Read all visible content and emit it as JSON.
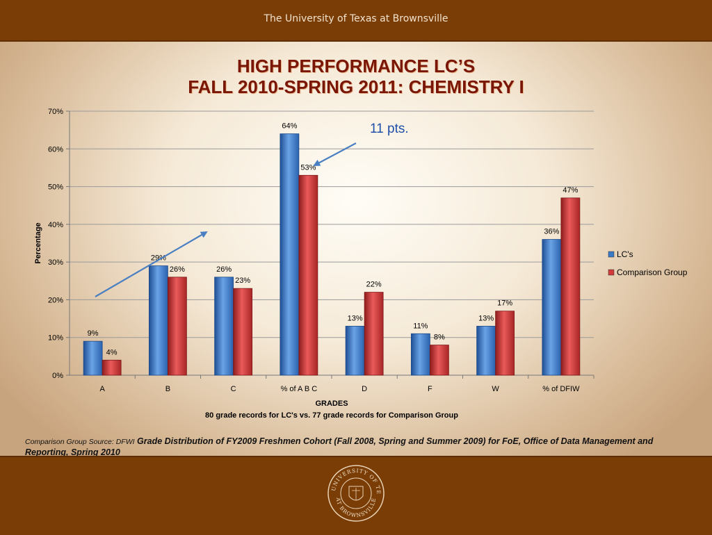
{
  "header": {
    "university": "The University of Texas at Brownsville"
  },
  "slide": {
    "title_line1": "HIGH PERFORMANCE LC’S",
    "title_line2": "FALL 2010-SPRING 2011: CHEMISTRY I",
    "annotation": "11 pts.",
    "source_label": "Comparison Group Source: DFWI",
    "source_text": "Grade Distribution of FY2009 Freshmen Cohort (Fall 2008, Spring and Summer 2009) for FoE, Office of Data Management and Reporting, Spring 2010"
  },
  "seal": {
    "top_text": "THE UNIVERSITY OF TEXAS",
    "bottom_text": "AT BROWNSVILLE"
  },
  "colors": {
    "lc": "#3a79c4",
    "comparison": "#d03a3a",
    "band": "#7a3d05",
    "title": "#7a1606"
  },
  "chart_data": {
    "type": "bar",
    "categories": [
      "A",
      "B",
      "C",
      "% of  A B C",
      "D",
      "F",
      "W",
      "% of DFIW"
    ],
    "series": [
      {
        "name": "LC's",
        "values": [
          9,
          29,
          26,
          64,
          13,
          11,
          13,
          36
        ],
        "labels": [
          "9%",
          "29%",
          "26%",
          "64%",
          "13%",
          "11%",
          "13%",
          "36%"
        ]
      },
      {
        "name": "Comparison Group",
        "values": [
          4,
          26,
          23,
          53,
          22,
          8,
          17,
          47
        ],
        "labels": [
          "4%",
          "26%",
          "23%",
          "53%",
          "22%",
          "8%",
          "17%",
          "47%"
        ]
      }
    ],
    "ylim": [
      0,
      70
    ],
    "yticks": [
      0,
      10,
      20,
      30,
      40,
      50,
      60,
      70
    ],
    "ytick_labels": [
      "0%",
      "10%",
      "20%",
      "30%",
      "40%",
      "50%",
      "60%",
      "70%"
    ],
    "ylabel": "Percentage",
    "xlabel": "GRADES",
    "subtitle": "80  grade records for LC's  vs.  77 grade records for Comparison Group",
    "grid": true,
    "legend": "right"
  }
}
